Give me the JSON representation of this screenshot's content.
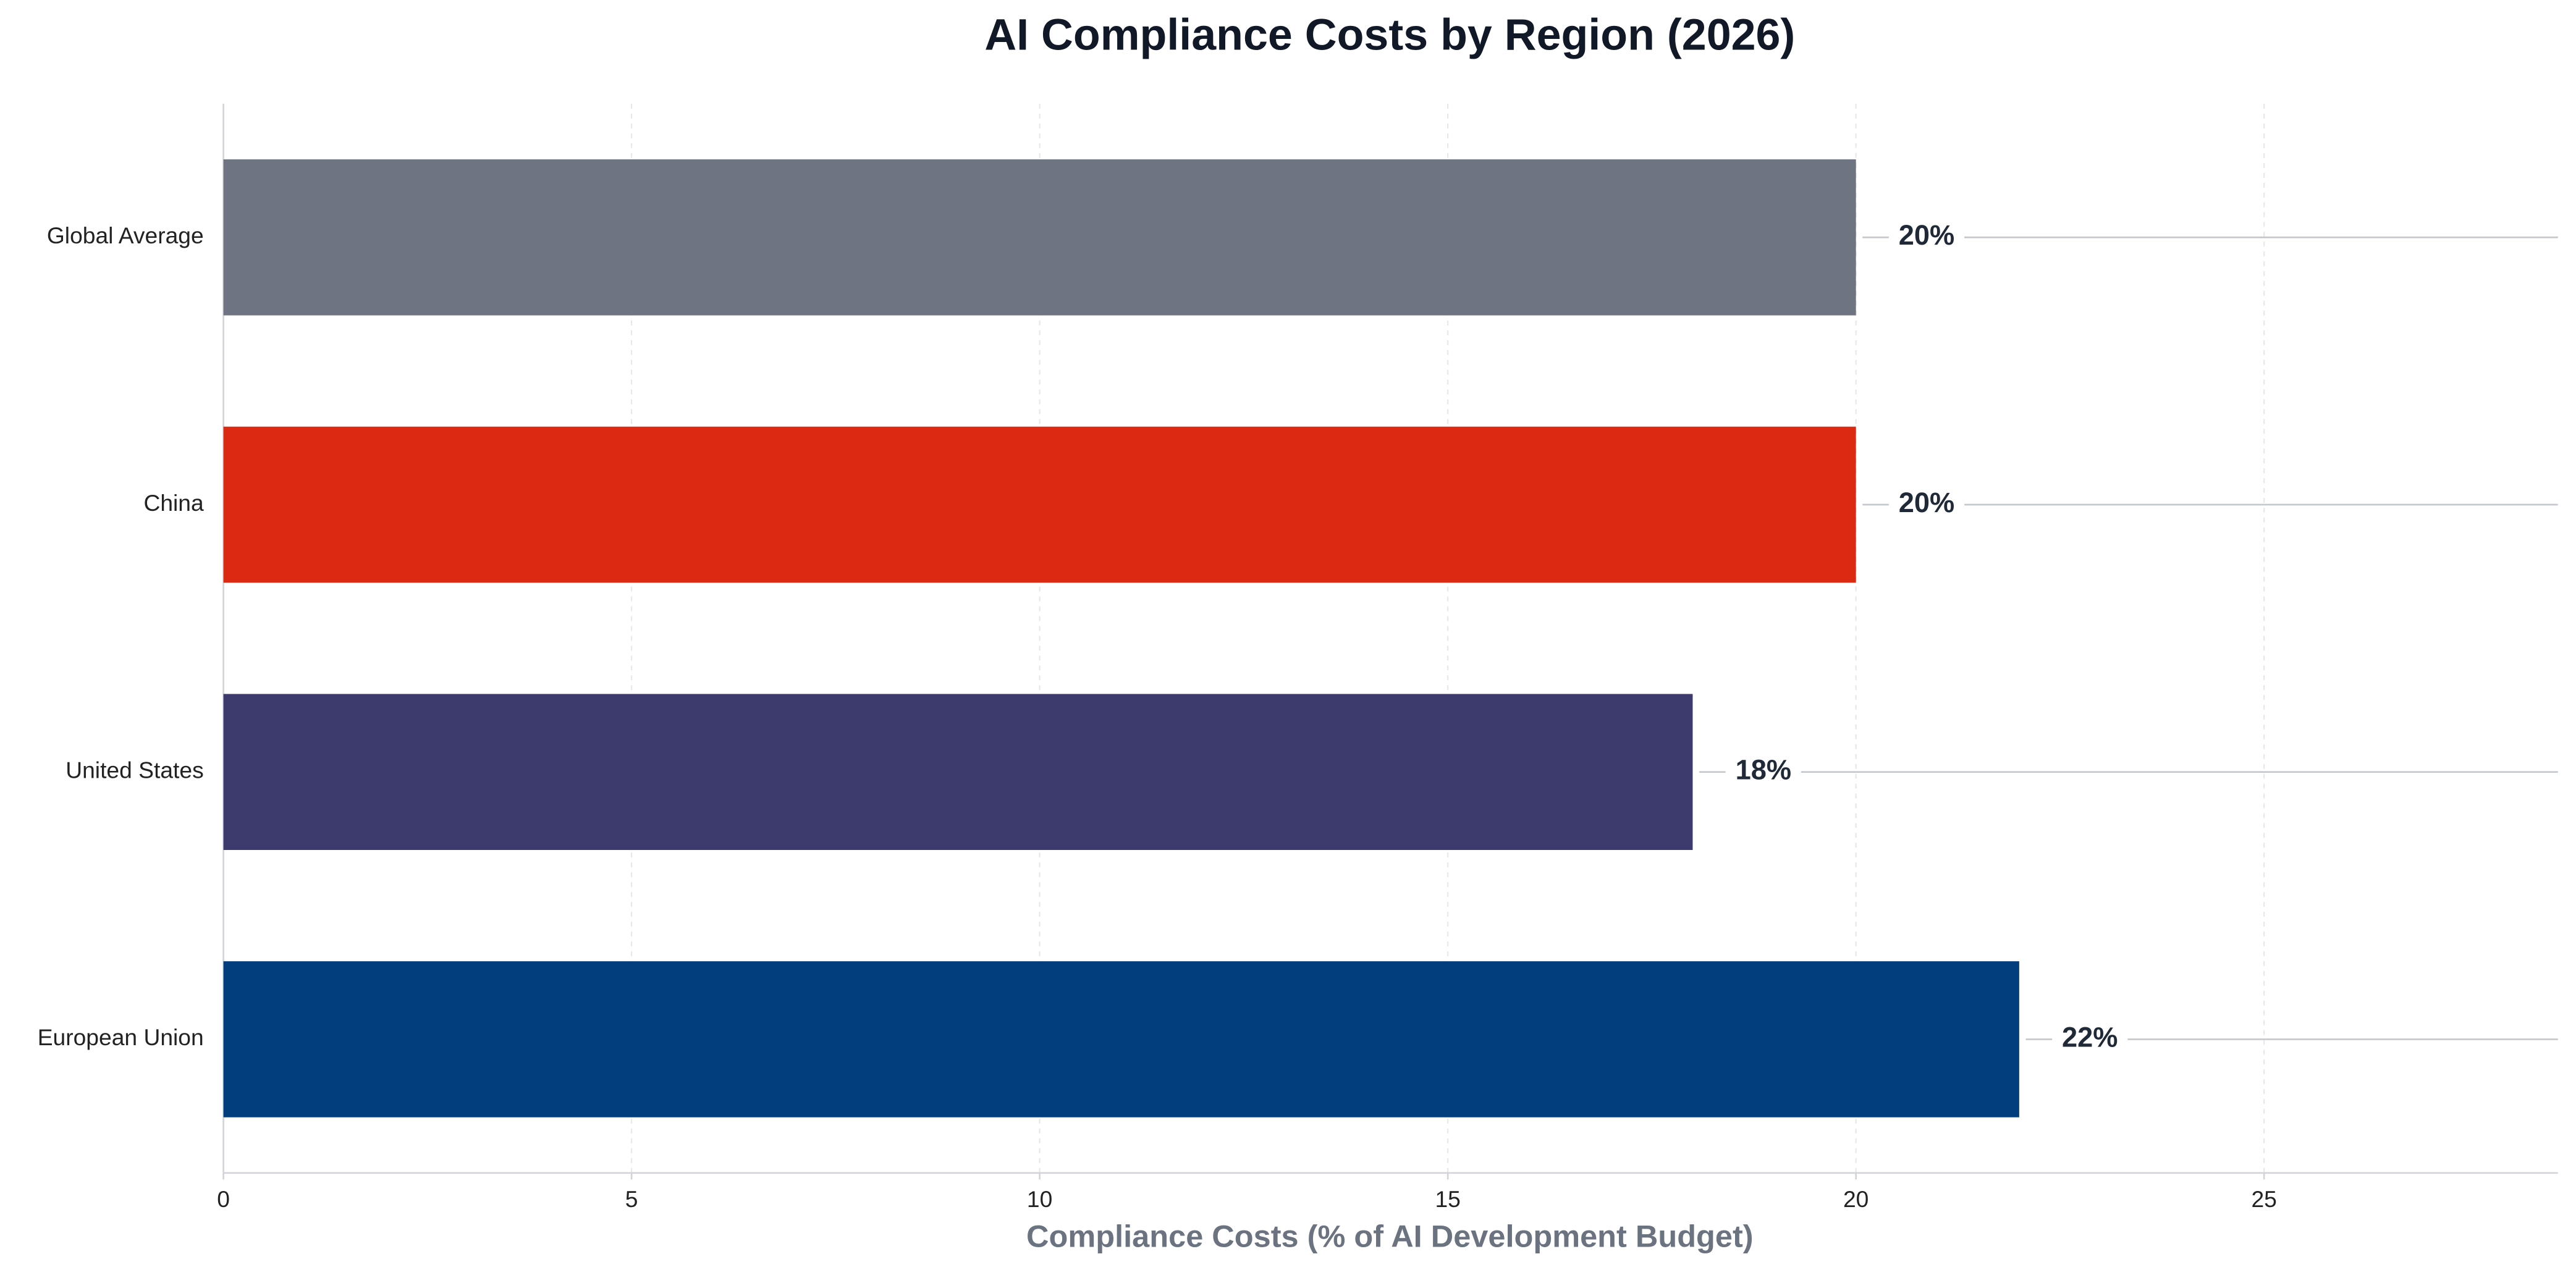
{
  "chart_data": {
    "type": "barh",
    "title": "AI Compliance Costs by Region (2026)",
    "x_label": "Compliance Costs (% of AI Development Budget)",
    "categories": [
      "European Union",
      "United States",
      "China",
      "Global Average"
    ],
    "values": [
      22,
      18,
      20,
      20
    ],
    "value_labels": [
      "22%",
      "18%",
      "20%",
      "20%"
    ],
    "colors": [
      "#023e7d",
      "#3d3b6e",
      "#dc2a12",
      "#6e7481"
    ],
    "xlim": [
      0,
      28.6
    ],
    "xticks": [
      0,
      5,
      10,
      15,
      20,
      25
    ],
    "grid": true
  }
}
